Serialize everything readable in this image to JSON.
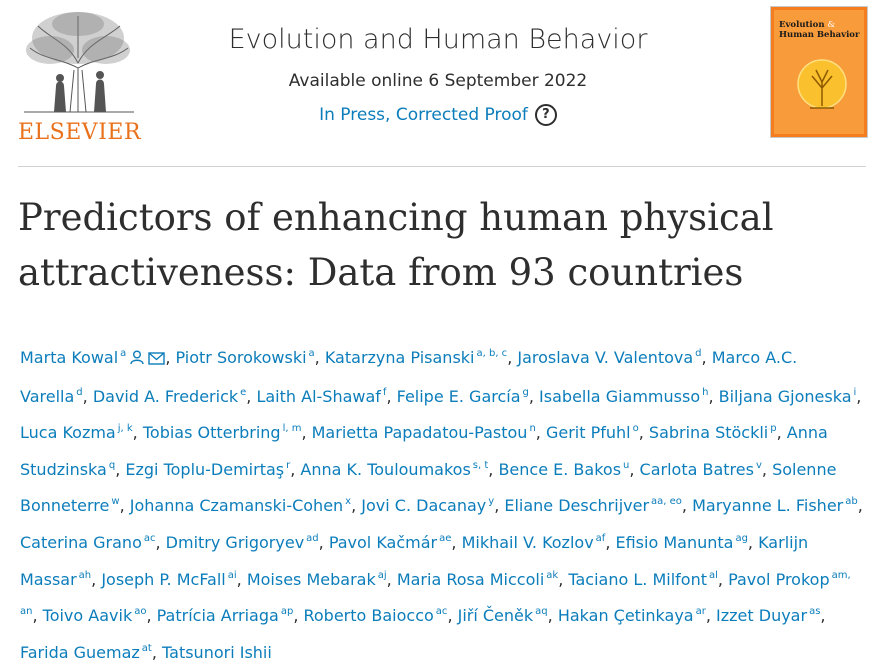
{
  "publisher": {
    "name": "ELSEVIER",
    "logo_icon": "elsevier-tree-logo"
  },
  "journal": {
    "title": "Evolution and Human Behavior",
    "online_date": "Available online 6 September 2022",
    "status": "In Press, Corrected Proof",
    "help_icon": "?"
  },
  "cover": {
    "title_line1": "Evolution",
    "title_line2": "Human Behavior",
    "ampersand": "&"
  },
  "article": {
    "title": "Predictors of enhancing human physical attractiveness: Data from 93 countries"
  },
  "authors": [
    {
      "name": "Marta Kowal",
      "aff": "a",
      "icons": [
        "person-icon",
        "envelope-icon"
      ]
    },
    {
      "name": "Piotr Sorokowski",
      "aff": "a"
    },
    {
      "name": "Katarzyna Pisanski",
      "aff": "a, b, c"
    },
    {
      "name": "Jaroslava V. Valentova",
      "aff": "d"
    },
    {
      "name": "Marco A.C. Varella",
      "aff": "d"
    },
    {
      "name": "David A. Frederick",
      "aff": "e"
    },
    {
      "name": "Laith Al-Shawaf",
      "aff": "f"
    },
    {
      "name": "Felipe E. García",
      "aff": "g"
    },
    {
      "name": "Isabella Giammusso",
      "aff": "h"
    },
    {
      "name": "Biljana Gjoneska",
      "aff": "i"
    },
    {
      "name": "Luca Kozma",
      "aff": "j, k"
    },
    {
      "name": "Tobias Otterbring",
      "aff": "l, m"
    },
    {
      "name": "Marietta Papadatou-Pastou",
      "aff": "n"
    },
    {
      "name": "Gerit Pfuhl",
      "aff": "o"
    },
    {
      "name": "Sabrina Stöckli",
      "aff": "p"
    },
    {
      "name": "Anna Studzinska",
      "aff": "q"
    },
    {
      "name": "Ezgi Toplu-Demirtaş",
      "aff": "r"
    },
    {
      "name": "Anna K. Touloumakos",
      "aff": "s, t"
    },
    {
      "name": "Bence E. Bakos",
      "aff": "u"
    },
    {
      "name": "Carlota Batres",
      "aff": "v"
    },
    {
      "name": "Solenne Bonneterre",
      "aff": "w"
    },
    {
      "name": "Johanna Czamanski-Cohen",
      "aff": "x"
    },
    {
      "name": "Jovi C. Dacanay",
      "aff": "y"
    },
    {
      "name": "Eliane Deschrijver",
      "aff": "aa, eo"
    },
    {
      "name": "Maryanne L. Fisher",
      "aff": "ab"
    },
    {
      "name": "Caterina Grano",
      "aff": "ac"
    },
    {
      "name": "Dmitry Grigoryev",
      "aff": "ad"
    },
    {
      "name": "Pavol Kačmár",
      "aff": "ae"
    },
    {
      "name": "Mikhail V. Kozlov",
      "aff": "af"
    },
    {
      "name": "Efisio Manunta",
      "aff": "ag"
    },
    {
      "name": "Karlijn Massar",
      "aff": "ah"
    },
    {
      "name": "Joseph P. McFall",
      "aff": "ai"
    },
    {
      "name": "Moises Mebarak",
      "aff": "aj"
    },
    {
      "name": "Maria Rosa Miccoli",
      "aff": "ak"
    },
    {
      "name": "Taciano L. Milfont",
      "aff": "al"
    },
    {
      "name": "Pavol Prokop",
      "aff": "am, an"
    },
    {
      "name": "Toivo Aavik",
      "aff": "ao"
    },
    {
      "name": "Patrícia Arriaga",
      "aff": "ap"
    },
    {
      "name": "Roberto Baiocco",
      "aff": "ac"
    },
    {
      "name": "Jiří Čeněk",
      "aff": "aq"
    },
    {
      "name": "Hakan Çetinkaya",
      "aff": "ar"
    },
    {
      "name": "Izzet Duyar",
      "aff": "as"
    },
    {
      "name": "Farida Guemaz",
      "aff": "at"
    },
    {
      "name": "Tatsunori Ishii",
      "aff": ""
    }
  ],
  "colors": {
    "link": "#0c7dbb",
    "text": "#2e2e2e",
    "elsevier_orange": "#e9711c",
    "cover_orange": "#f47d20"
  }
}
